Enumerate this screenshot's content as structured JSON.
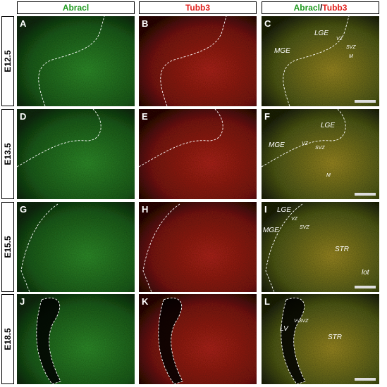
{
  "column_headers": [
    {
      "parts": [
        {
          "text": "Abracl",
          "color": "#1f9a1f"
        }
      ]
    },
    {
      "parts": [
        {
          "text": "Tubb3",
          "color": "#e0201c"
        }
      ]
    },
    {
      "parts": [
        {
          "text": "Abracl",
          "color": "#1f9a1f"
        },
        {
          "text": "/",
          "color": "#000000"
        },
        {
          "text": "Tubb3",
          "color": "#e0201c"
        }
      ]
    }
  ],
  "rows": [
    {
      "label": "E12.5",
      "panels": [
        {
          "letter": "A",
          "annotations": []
        },
        {
          "letter": "B",
          "annotations": []
        },
        {
          "letter": "C",
          "annotations": [
            "LGE",
            "VZ",
            "SVZ",
            "M",
            "MGE"
          ]
        }
      ]
    },
    {
      "label": "E13.5",
      "panels": [
        {
          "letter": "D",
          "annotations": []
        },
        {
          "letter": "E",
          "annotations": []
        },
        {
          "letter": "F",
          "annotations": [
            "LGE",
            "MGE",
            "VZ",
            "SVZ",
            "M"
          ]
        }
      ]
    },
    {
      "label": "E15.5",
      "panels": [
        {
          "letter": "G",
          "annotations": []
        },
        {
          "letter": "H",
          "annotations": []
        },
        {
          "letter": "I",
          "annotations": [
            "LGE",
            "MGE",
            "VZ",
            "SVZ",
            "STR",
            "lot"
          ]
        }
      ]
    },
    {
      "label": "E18.5",
      "panels": [
        {
          "letter": "J",
          "annotations": []
        },
        {
          "letter": "K",
          "annotations": []
        },
        {
          "letter": "L",
          "annotations": [
            "LV",
            "V-SVZ",
            "STR"
          ]
        }
      ]
    }
  ]
}
